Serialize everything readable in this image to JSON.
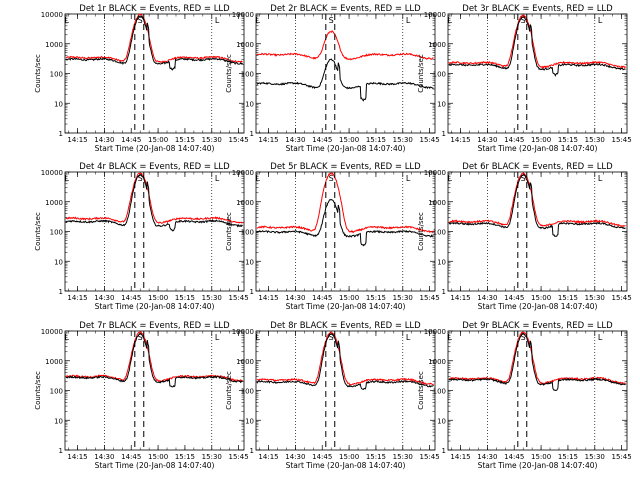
{
  "chart_data": [
    {
      "type": "line",
      "title": "Det 1r  BLACK = Events, RED = LLD",
      "xlabel": "Start Time (20-Jan-08 14:07:40)",
      "ylabel": "Counts/sec",
      "yscale": "log",
      "ylim": [
        1,
        10000
      ],
      "xlim": [
        "14:08",
        "15:48"
      ],
      "yticks": [
        "1",
        "10",
        "100",
        "1000",
        "10000"
      ],
      "xticks": [
        "14:15",
        "14:30",
        "14:45",
        "15:00",
        "15:15",
        "15:30",
        "15:45"
      ],
      "vlines_dotted": [
        "14:30",
        "15:30"
      ],
      "vlines_dashed": [
        "14:47",
        "14:52"
      ],
      "corner_marks": [
        "L",
        "S",
        "L"
      ],
      "series": [
        {
          "color": "#000000",
          "levels": {
            "base": 260,
            "peak": 8500,
            "dip": 140
          }
        },
        {
          "color": "#ff0000",
          "levels": {
            "base": 300,
            "peak": 9500
          }
        }
      ]
    },
    {
      "type": "line",
      "title": "Det 2r  BLACK = Events, RED = LLD",
      "xlabel": "Start Time (20-Jan-08 14:07:40)",
      "ylabel": "Counts/sec",
      "yscale": "log",
      "ylim": [
        1,
        10000
      ],
      "xlim": [
        "14:08",
        "15:48"
      ],
      "yticks": [
        "1",
        "10",
        "100",
        "1000",
        "10000"
      ],
      "xticks": [
        "14:15",
        "14:30",
        "14:45",
        "15:00",
        "15:15",
        "15:30",
        "15:45"
      ],
      "vlines_dotted": [
        "14:30",
        "15:30"
      ],
      "vlines_dashed": [
        "14:47",
        "14:52"
      ],
      "corner_marks": [
        "L",
        "S",
        "L"
      ],
      "series": [
        {
          "color": "#000000",
          "levels": {
            "base": 40,
            "peak": 300,
            "dip": 13
          }
        },
        {
          "color": "#ff0000",
          "levels": {
            "base": 380,
            "peak": 2600
          }
        }
      ]
    },
    {
      "type": "line",
      "title": "Det 3r  BLACK = Events, RED = LLD",
      "xlabel": "Start Time (20-Jan-08 14:07:40)",
      "ylabel": "Counts/sec",
      "yscale": "log",
      "ylim": [
        1,
        10000
      ],
      "xlim": [
        "14:08",
        "15:48"
      ],
      "yticks": [
        "1",
        "10",
        "100",
        "1000",
        "10000"
      ],
      "xticks": [
        "14:15",
        "14:30",
        "14:45",
        "15:00",
        "15:15",
        "15:30",
        "15:45"
      ],
      "vlines_dotted": [
        "14:30",
        "15:30"
      ],
      "vlines_dashed": [
        "14:47",
        "14:52"
      ],
      "corner_marks": [
        "L",
        "S",
        "L"
      ],
      "series": [
        {
          "color": "#000000",
          "levels": {
            "base": 170,
            "peak": 8000,
            "dip": 90
          }
        },
        {
          "color": "#ff0000",
          "levels": {
            "base": 200,
            "peak": 9000
          }
        }
      ]
    },
    {
      "type": "line",
      "title": "Det 4r  BLACK = Events, RED = LLD",
      "xlabel": "Start Time (20-Jan-08 14:07:40)",
      "ylabel": "Counts/sec",
      "yscale": "log",
      "ylim": [
        1,
        10000
      ],
      "xlim": [
        "14:08",
        "15:48"
      ],
      "yticks": [
        "1",
        "10",
        "100",
        "1000",
        "10000"
      ],
      "xticks": [
        "14:15",
        "14:30",
        "14:45",
        "15:00",
        "15:15",
        "15:30",
        "15:45"
      ],
      "vlines_dotted": [
        "14:30",
        "15:30"
      ],
      "vlines_dashed": [
        "14:47",
        "14:52"
      ],
      "corner_marks": [
        "L",
        "S",
        "L"
      ],
      "series": [
        {
          "color": "#000000",
          "levels": {
            "base": 190,
            "peak": 8000,
            "dip": 110
          }
        },
        {
          "color": "#ff0000",
          "levels": {
            "base": 240,
            "peak": 9000
          }
        }
      ]
    },
    {
      "type": "line",
      "title": "Det 5r  BLACK = Events, RED = LLD",
      "xlabel": "Start Time (20-Jan-08 14:07:40)",
      "ylabel": "Counts/sec",
      "yscale": "log",
      "ylim": [
        1,
        10000
      ],
      "xlim": [
        "14:08",
        "15:48"
      ],
      "yticks": [
        "1",
        "10",
        "100",
        "1000",
        "10000"
      ],
      "xticks": [
        "14:15",
        "14:30",
        "14:45",
        "15:00",
        "15:15",
        "15:30",
        "15:45"
      ],
      "vlines_dotted": [
        "14:30",
        "15:30"
      ],
      "vlines_dashed": [
        "14:47",
        "14:52"
      ],
      "corner_marks": [
        "L",
        "S",
        "L"
      ],
      "series": [
        {
          "color": "#000000",
          "levels": {
            "base": 85,
            "peak": 1200,
            "dip": 35
          }
        },
        {
          "color": "#ff0000",
          "levels": {
            "base": 120,
            "peak": 9000
          }
        }
      ]
    },
    {
      "type": "line",
      "title": "Det 6r  BLACK = Events, RED = LLD",
      "xlabel": "Start Time (20-Jan-08 14:07:40)",
      "ylabel": "Counts/sec",
      "yscale": "log",
      "ylim": [
        1,
        10000
      ],
      "xlim": [
        "14:08",
        "15:48"
      ],
      "yticks": [
        "1",
        "10",
        "100",
        "1000",
        "10000"
      ],
      "xticks": [
        "14:15",
        "14:30",
        "14:45",
        "15:00",
        "15:15",
        "15:30",
        "15:45"
      ],
      "vlines_dotted": [
        "14:30",
        "15:30"
      ],
      "vlines_dashed": [
        "14:47",
        "14:52"
      ],
      "corner_marks": [
        "L",
        "S",
        "L"
      ],
      "series": [
        {
          "color": "#000000",
          "levels": {
            "base": 160,
            "peak": 8000,
            "dip": 70
          }
        },
        {
          "color": "#ff0000",
          "levels": {
            "base": 190,
            "peak": 9000
          }
        }
      ]
    },
    {
      "type": "line",
      "title": "Det 7r  BLACK = Events, RED = LLD",
      "xlabel": "Start Time (20-Jan-08 14:07:40)",
      "ylabel": "Counts/sec",
      "yscale": "log",
      "ylim": [
        1,
        10000
      ],
      "xlim": [
        "14:08",
        "15:48"
      ],
      "yticks": [
        "1",
        "10",
        "100",
        "1000",
        "10000"
      ],
      "xticks": [
        "14:15",
        "14:30",
        "14:45",
        "15:00",
        "15:15",
        "15:30",
        "15:45"
      ],
      "vlines_dotted": [
        "14:30",
        "15:30"
      ],
      "vlines_dashed": [
        "14:47",
        "14:52"
      ],
      "corner_marks": [
        "L",
        "S",
        "L"
      ],
      "series": [
        {
          "color": "#000000",
          "levels": {
            "base": 240,
            "peak": 8000,
            "dip": 130
          }
        },
        {
          "color": "#ff0000",
          "levels": {
            "base": 260,
            "peak": 9000
          }
        }
      ]
    },
    {
      "type": "line",
      "title": "Det 8r  BLACK = Events, RED = LLD",
      "xlabel": "Start Time (20-Jan-08 14:07:40)",
      "ylabel": "Counts/sec",
      "yscale": "log",
      "ylim": [
        1,
        10000
      ],
      "xlim": [
        "14:08",
        "15:48"
      ],
      "yticks": [
        "1",
        "10",
        "100",
        "1000",
        "10000"
      ],
      "xticks": [
        "14:15",
        "14:30",
        "14:45",
        "15:00",
        "15:15",
        "15:30",
        "15:45"
      ],
      "vlines_dotted": [
        "14:30",
        "15:30"
      ],
      "vlines_dashed": [
        "14:47",
        "14:52"
      ],
      "corner_marks": [
        "L",
        "S",
        "L"
      ],
      "series": [
        {
          "color": "#000000",
          "levels": {
            "base": 170,
            "peak": 8000,
            "dip": 110
          }
        },
        {
          "color": "#ff0000",
          "levels": {
            "base": 200,
            "peak": 9000
          }
        }
      ]
    },
    {
      "type": "line",
      "title": "Det 9r  BLACK = Events, RED = LLD",
      "xlabel": "Start Time (20-Jan-08 14:07:40)",
      "ylabel": "Counts/sec",
      "yscale": "log",
      "ylim": [
        1,
        10000
      ],
      "xlim": [
        "14:08",
        "15:48"
      ],
      "yticks": [
        "1",
        "10",
        "100",
        "1000",
        "10000"
      ],
      "xticks": [
        "14:15",
        "14:30",
        "14:45",
        "15:00",
        "15:15",
        "15:30",
        "15:45"
      ],
      "vlines_dotted": [
        "14:30",
        "15:30"
      ],
      "vlines_dashed": [
        "14:47",
        "14:52"
      ],
      "corner_marks": [
        "L",
        "S",
        "L"
      ],
      "series": [
        {
          "color": "#000000",
          "levels": {
            "base": 200,
            "peak": 8000,
            "dip": 100
          }
        },
        {
          "color": "#ff0000",
          "levels": {
            "base": 220,
            "peak": 9000
          }
        }
      ]
    }
  ]
}
